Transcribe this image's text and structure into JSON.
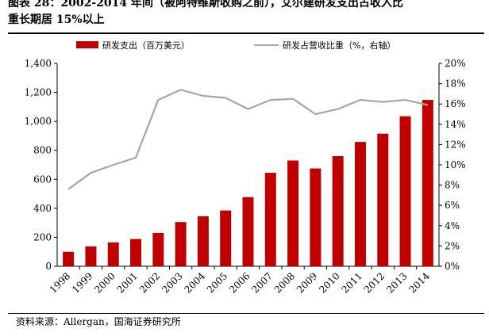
{
  "header": {
    "title": "图表 28：2002-2014 年间（被阿特维斯收购之前），艾尔建研发支出占收入比\n重长期居 15%以上"
  },
  "footer": {
    "source": "资料来源：Allergan，国海证券研究所"
  },
  "colors": {
    "bar": "#c00000",
    "line": "#a6a6a6",
    "axis": "#000000"
  },
  "chart_data": {
    "type": "bar",
    "title": "",
    "xlabel": "",
    "ylabel": "",
    "categories": [
      "1998",
      "1999",
      "2000",
      "2001",
      "2002",
      "2003",
      "2004",
      "2005",
      "2006",
      "2007",
      "2008",
      "2009",
      "2010",
      "2011",
      "2012",
      "2013",
      "2014"
    ],
    "series": [
      {
        "name": "研发支出（百万美元）",
        "type": "bar",
        "axis": "left",
        "values": [
          100,
          137,
          165,
          188,
          230,
          305,
          345,
          385,
          477,
          645,
          730,
          675,
          760,
          858,
          915,
          1035,
          1148
        ]
      },
      {
        "name": "研发占营收比重（%，右轴）",
        "type": "line",
        "axis": "right",
        "values": [
          7.6,
          9.2,
          10.0,
          10.7,
          16.4,
          17.4,
          16.8,
          16.6,
          15.5,
          16.4,
          16.5,
          15.0,
          15.5,
          16.4,
          16.2,
          16.4,
          15.9
        ]
      }
    ],
    "ylim": [
      0,
      1400
    ],
    "y_ticks": [
      "0",
      "200",
      "400",
      "600",
      "800",
      "1,000",
      "1,200",
      "1,400"
    ],
    "y2lim": [
      0,
      20
    ],
    "y2_ticks": [
      "0%",
      "2%",
      "4%",
      "6%",
      "8%",
      "10%",
      "12%",
      "14%",
      "16%",
      "18%",
      "20%"
    ],
    "legend_position": "top",
    "grid": false
  }
}
